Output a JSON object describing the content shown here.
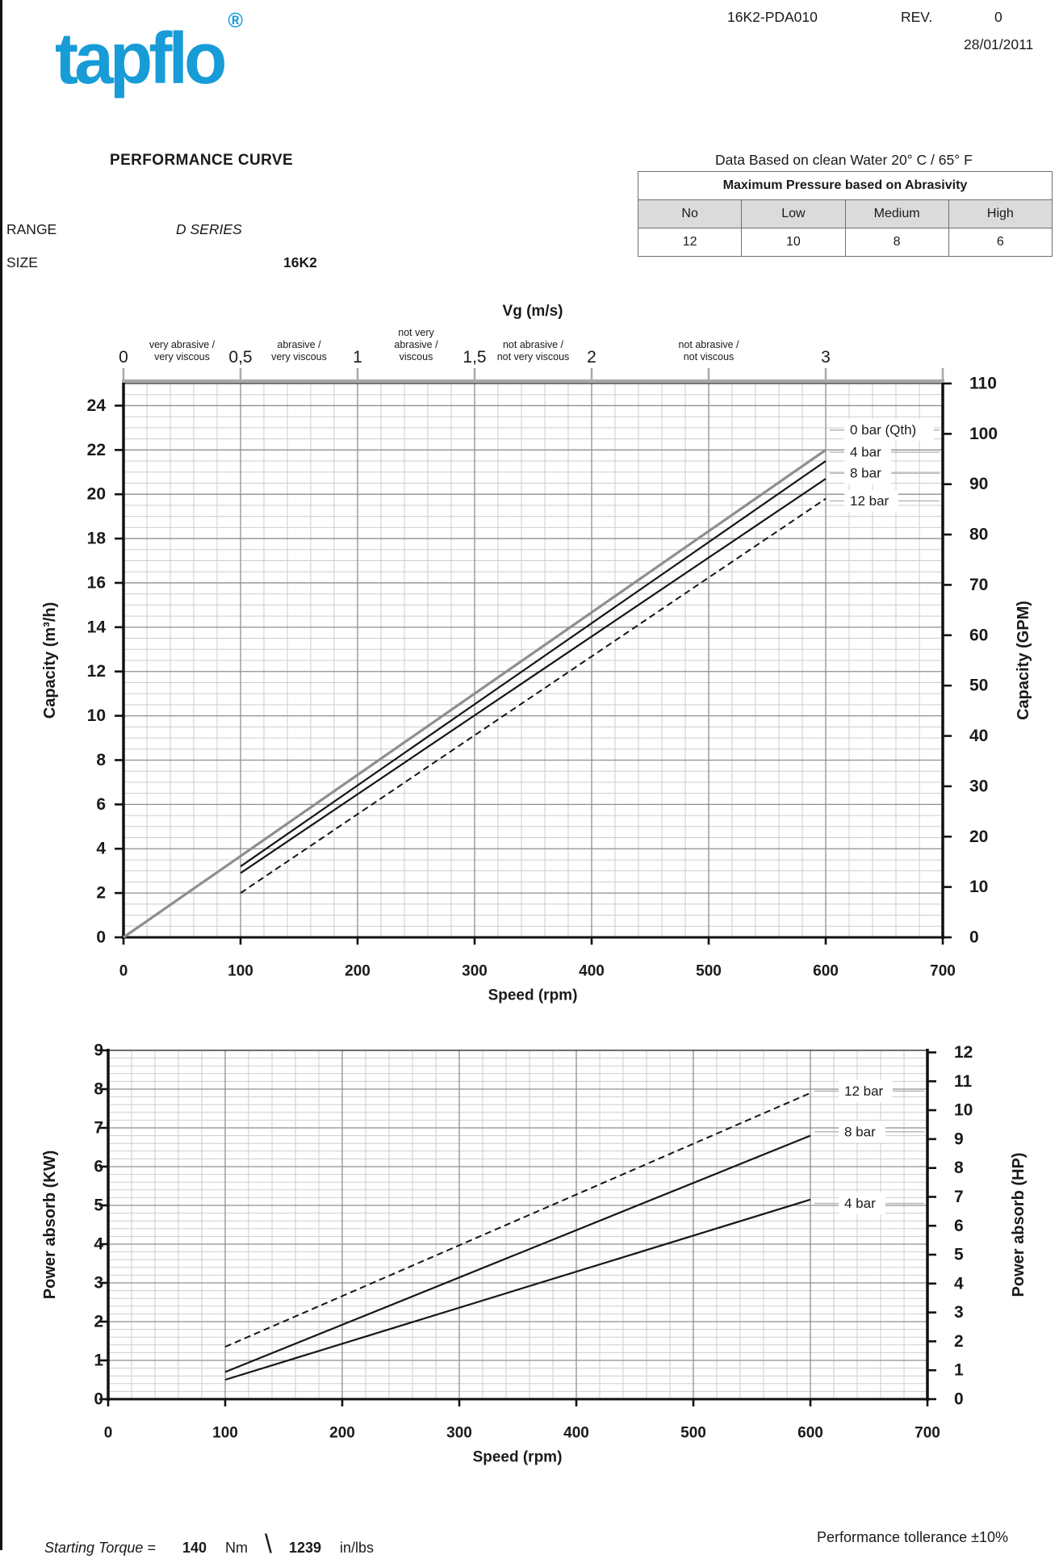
{
  "header": {
    "logo_text": "tapflo",
    "registered_mark": "®",
    "subtitle": "PERFORMANCE CURVE",
    "doc_number": "16K2-PDA010",
    "rev_label": "REV.",
    "rev_value": "0",
    "date": "28/01/2011",
    "data_note": "Data Based on clean Water 20° C  /  65° F",
    "brand_color": "#189CD8"
  },
  "info": {
    "range_label": "RANGE",
    "range_value": "D SERIES",
    "size_label": "SIZE",
    "size_value": "16K2"
  },
  "abrasivity_table": {
    "title": "Maximum Pressure based on Abrasivity",
    "columns": [
      "No",
      "Low",
      "Medium",
      "High"
    ],
    "values": [
      "12",
      "10",
      "8",
      "6"
    ]
  },
  "footer": {
    "torque_label": "Starting Torque =",
    "torque_nm": "140",
    "nm_unit": "Nm",
    "separator": "\\",
    "torque_inlbs": "1239",
    "inlbs_unit": "in/lbs",
    "tolerance": "Performance tollerance ±10%"
  },
  "chart_data": [
    {
      "type": "line",
      "xlabel": "Speed (rpm)",
      "ylabel_left": "Capacity (m³/h)",
      "ylabel_right": "Capacity (GPM)",
      "x_range": [
        0,
        700
      ],
      "x_ticks": [
        0,
        100,
        200,
        300,
        400,
        500,
        600,
        700
      ],
      "y_left_range": [
        0,
        25
      ],
      "y_left_ticks": [
        0,
        2,
        4,
        6,
        8,
        10,
        12,
        14,
        16,
        18,
        20,
        22,
        24
      ],
      "y_right_range": [
        0,
        110
      ],
      "y_right_ticks": [
        0,
        10,
        20,
        30,
        40,
        50,
        60,
        70,
        80,
        90,
        100,
        110
      ],
      "grid": "minor+major",
      "legend_position": "right-inline-labels",
      "top_axis": {
        "title": "Vg (m/s)",
        "tick_rpms": [
          0,
          100,
          200,
          300,
          400,
          500,
          600,
          700
        ],
        "unit_ticks": [
          {
            "label": "0",
            "rpm": 0
          },
          {
            "label": "0,5",
            "rpm": 100
          },
          {
            "label": "1",
            "rpm": 200
          },
          {
            "label": "1,5",
            "rpm": 300
          },
          {
            "label": "2",
            "rpm": 400
          },
          {
            "label": "3",
            "rpm": 600
          }
        ],
        "segments": [
          {
            "lines": [
              "very abrasive /",
              "very viscous"
            ],
            "rpm": 50
          },
          {
            "lines": [
              "abrasive /",
              "very viscous"
            ],
            "rpm": 150
          },
          {
            "lines": [
              "not very",
              "abrasive /",
              "viscous"
            ],
            "rpm": 250
          },
          {
            "lines": [
              "not  abrasive /",
              "not very viscous"
            ],
            "rpm": 350
          },
          {
            "lines": [
              "not  abrasive /",
              "not  viscous"
            ],
            "rpm": 500
          }
        ]
      },
      "series": [
        {
          "name": "0 bar (Qth)",
          "style": "solid",
          "color": "#8e8e8e",
          "width": 3.2,
          "points": [
            [
              0,
              0
            ],
            [
              600,
              22.0
            ]
          ],
          "label_value": 22.9
        },
        {
          "name": "4 bar",
          "style": "solid",
          "color": "#151515",
          "width": 2.2,
          "points": [
            [
              100,
              3.2
            ],
            [
              600,
              21.5
            ]
          ],
          "label_value": 21.9
        },
        {
          "name": "8 bar",
          "style": "solid",
          "color": "#151515",
          "width": 2.2,
          "points": [
            [
              100,
              2.9
            ],
            [
              600,
              20.7
            ]
          ],
          "label_value": 20.95
        },
        {
          "name": "12 bar",
          "style": "dashed",
          "color": "#151515",
          "width": 2,
          "points": [
            [
              100,
              2.0
            ],
            [
              600,
              19.8
            ]
          ],
          "label_value": 19.7
        }
      ]
    },
    {
      "type": "line",
      "xlabel": "Speed (rpm)",
      "ylabel_left": "Power absorb (KW)",
      "ylabel_right": "Power absorb (HP)",
      "x_range": [
        0,
        700
      ],
      "x_ticks": [
        0,
        100,
        200,
        300,
        400,
        500,
        600,
        700
      ],
      "y_left_range": [
        0,
        9
      ],
      "y_left_ticks": [
        0,
        1,
        2,
        3,
        4,
        5,
        6,
        7,
        8,
        9
      ],
      "y_right_range": [
        0,
        12.07
      ],
      "y_right_ticks": [
        0,
        1,
        2,
        3,
        4,
        5,
        6,
        7,
        8,
        9,
        10,
        11,
        12
      ],
      "grid": "minor+major",
      "legend_position": "right-inline-labels",
      "series": [
        {
          "name": "12 bar",
          "style": "dashed",
          "color": "#151515",
          "width": 2,
          "points": [
            [
              100,
              1.35
            ],
            [
              600,
              7.9
            ]
          ],
          "label_value": 7.95
        },
        {
          "name": "8 bar",
          "style": "solid",
          "color": "#151515",
          "width": 2.2,
          "points": [
            [
              100,
              0.7
            ],
            [
              600,
              6.8
            ]
          ],
          "label_value": 6.9
        },
        {
          "name": "4 bar",
          "style": "solid",
          "color": "#151515",
          "width": 2.2,
          "points": [
            [
              100,
              0.5
            ],
            [
              600,
              5.15
            ]
          ],
          "label_value": 5.05
        }
      ]
    }
  ]
}
